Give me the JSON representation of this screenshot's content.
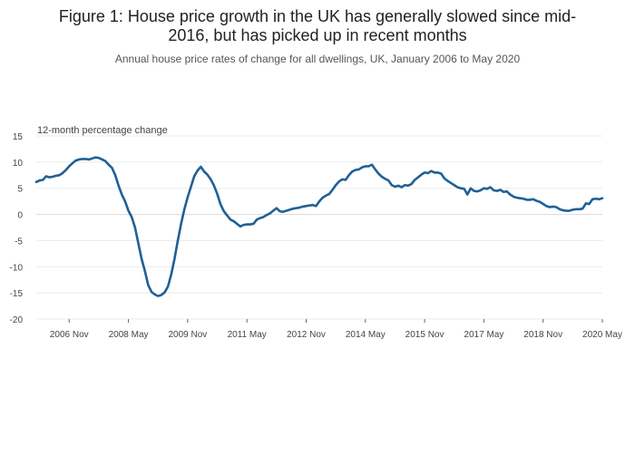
{
  "title_line1": "Figure 1: House price growth in the UK has generally slowed since mid-",
  "title_line2": "2016, but has picked up in recent months",
  "subtitle": "Annual house price rates of change for all dwellings, UK, January 2006 to May 2020",
  "chart_data": {
    "type": "line",
    "title": "Figure 1: House price growth in the UK has generally slowed since mid-2016, but has picked up in recent months",
    "subtitle": "Annual house price rates of change for all dwellings, UK, January 2006 to May 2020",
    "ylabel": "12-month percentage change",
    "xlabel": "",
    "ylim": [
      -20,
      15
    ],
    "yticks": [
      15,
      10,
      5,
      0,
      -5,
      -10,
      -15,
      -20
    ],
    "xticks": [
      {
        "label": "2006 Nov",
        "t": 10
      },
      {
        "label": "2008 May",
        "t": 28
      },
      {
        "label": "2009 Nov",
        "t": 46
      },
      {
        "label": "2011 May",
        "t": 64
      },
      {
        "label": "2012 Nov",
        "t": 82
      },
      {
        "label": "2014 May",
        "t": 100
      },
      {
        "label": "2015 Nov",
        "t": 118
      },
      {
        "label": "2017 May",
        "t": 136
      },
      {
        "label": "2018 Nov",
        "t": 154
      },
      {
        "label": "2020 May",
        "t": 172
      }
    ],
    "x_start": "2006-01",
    "x_end": "2020-05",
    "grid": true,
    "color": "#206095",
    "series": [
      {
        "name": "Annual house price rate of change",
        "values": [
          6.2,
          6.5,
          6.6,
          7.3,
          7.1,
          7.2,
          7.4,
          7.5,
          7.9,
          8.5,
          9.2,
          9.8,
          10.3,
          10.5,
          10.6,
          10.6,
          10.5,
          10.7,
          10.9,
          10.8,
          10.5,
          10.2,
          9.5,
          8.9,
          7.5,
          5.5,
          3.8,
          2.5,
          0.7,
          -0.5,
          -2.5,
          -5.5,
          -8.5,
          -10.8,
          -13.5,
          -14.8,
          -15.3,
          -15.6,
          -15.4,
          -14.9,
          -13.8,
          -11.5,
          -8.5,
          -5.0,
          -1.8,
          1.0,
          3.3,
          5.3,
          7.3,
          8.4,
          9.1,
          8.2,
          7.6,
          6.7,
          5.5,
          3.9,
          1.9,
          0.6,
          -0.2,
          -1.0,
          -1.3,
          -1.8,
          -2.3,
          -2.0,
          -1.9,
          -1.9,
          -1.8,
          -1.0,
          -0.7,
          -0.5,
          -0.1,
          0.2,
          0.7,
          1.2,
          0.6,
          0.5,
          0.7,
          0.9,
          1.1,
          1.2,
          1.3,
          1.5,
          1.6,
          1.7,
          1.8,
          1.6,
          2.5,
          3.2,
          3.6,
          3.9,
          4.7,
          5.6,
          6.3,
          6.7,
          6.6,
          7.5,
          8.2,
          8.5,
          8.6,
          9.0,
          9.2,
          9.2,
          9.5,
          8.6,
          7.8,
          7.2,
          6.8,
          6.5,
          5.6,
          5.3,
          5.5,
          5.2,
          5.6,
          5.5,
          5.8,
          6.6,
          7.1,
          7.6,
          8.0,
          7.9,
          8.3,
          8.0,
          8.0,
          7.8,
          6.9,
          6.4,
          6.0,
          5.6,
          5.2,
          5.0,
          4.9,
          3.8,
          5.0,
          4.5,
          4.4,
          4.6,
          5.0,
          4.9,
          5.2,
          4.6,
          4.5,
          4.7,
          4.3,
          4.4,
          3.8,
          3.4,
          3.2,
          3.1,
          3.0,
          2.8,
          2.8,
          2.9,
          2.6,
          2.4,
          2.0,
          1.6,
          1.4,
          1.5,
          1.4,
          1.0,
          0.8,
          0.7,
          0.7,
          0.9,
          1.0,
          1.0,
          1.1,
          2.1,
          2.0,
          2.9,
          3.0,
          2.9,
          3.1
        ]
      }
    ]
  }
}
